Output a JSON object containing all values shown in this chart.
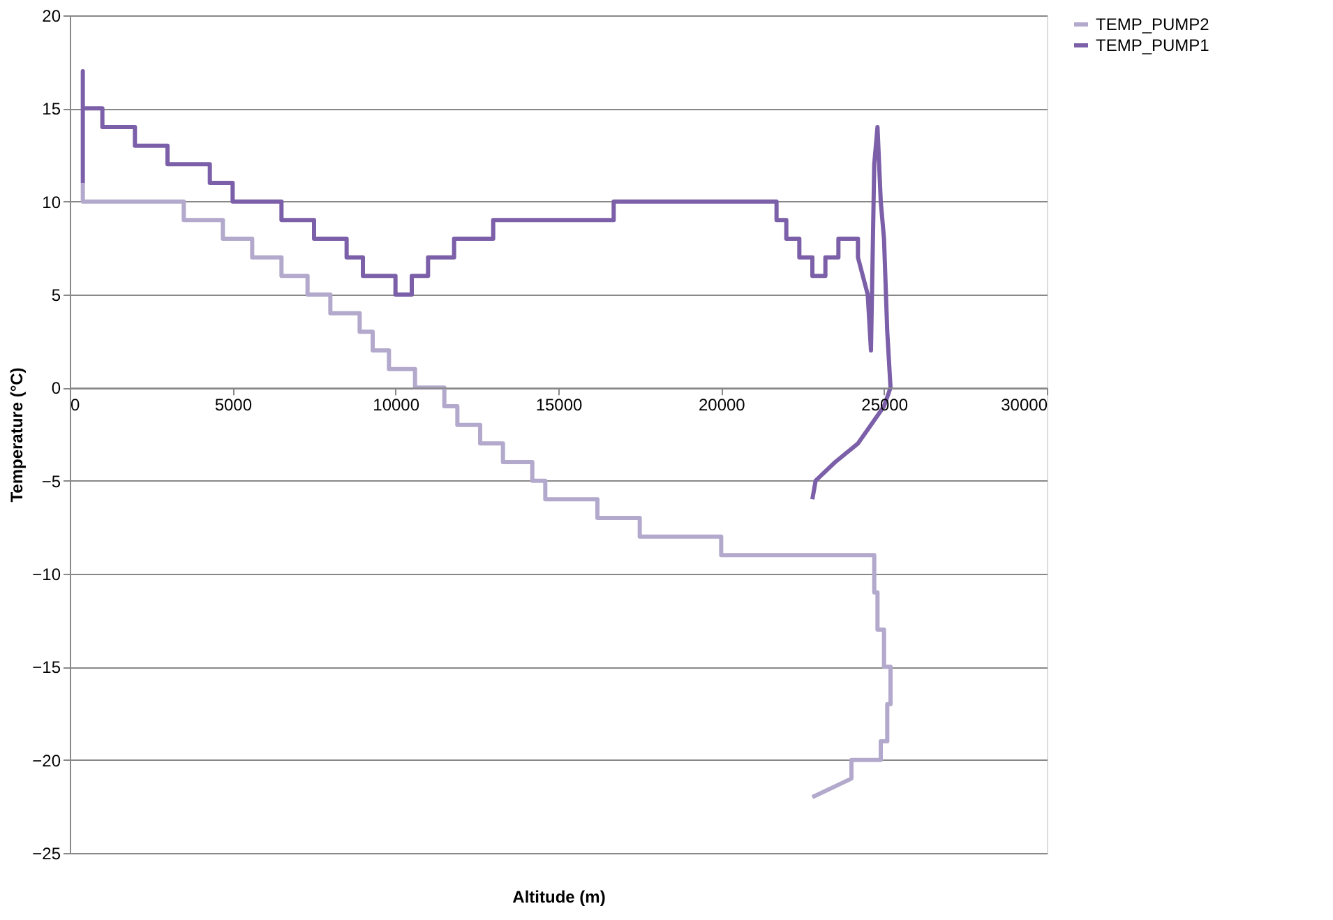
{
  "chart_data": {
    "type": "line",
    "xlabel": "Altitude (m)",
    "ylabel": "Temperature (°C)",
    "xlim": [
      0,
      30000
    ],
    "xticks": [
      0,
      5000,
      10000,
      15000,
      20000,
      25000,
      30000
    ],
    "ylim": [
      -25,
      20
    ],
    "yticks": [
      -25,
      -20,
      -15,
      -10,
      -5,
      0,
      5,
      10,
      15,
      20
    ],
    "grid": "y",
    "legend": "right",
    "line_style": "solid",
    "marker": "none",
    "series": [
      {
        "name": "TEMP_PUMP2",
        "color": "#b3a9cc",
        "x": [
          400,
          400,
          3500,
          3500,
          4700,
          4700,
          5600,
          5600,
          6500,
          6500,
          7300,
          7300,
          8000,
          8000,
          8900,
          8900,
          9300,
          9300,
          9800,
          9800,
          10600,
          10600,
          11500,
          11500,
          11900,
          11900,
          12600,
          12600,
          13300,
          13300,
          14200,
          14200,
          14600,
          14600,
          16200,
          16200,
          17500,
          17500,
          20000,
          20000,
          23200,
          23200,
          24700,
          24700,
          24800,
          24800,
          25000,
          25000,
          25200,
          25200,
          25100,
          25100,
          24900,
          24900,
          24000,
          24000,
          22800
        ],
        "values": [
          11,
          10,
          10,
          9,
          9,
          8,
          8,
          7,
          7,
          6,
          6,
          5,
          5,
          4,
          4,
          3,
          3,
          2,
          2,
          1,
          1,
          0,
          0,
          -1,
          -1,
          -2,
          -2,
          -3,
          -3,
          -4,
          -4,
          -5,
          -5,
          -6,
          -6,
          -7,
          -7,
          -8,
          -8,
          -9,
          -9,
          -9,
          -9,
          -11,
          -11,
          -13,
          -13,
          -15,
          -15,
          -17,
          -17,
          -19,
          -19,
          -20,
          -20,
          -21,
          -22
        ]
      },
      {
        "name": "TEMP_PUMP1",
        "color": "#7b5fa8",
        "x": [
          400,
          400,
          400,
          1000,
          1000,
          2000,
          2000,
          3000,
          3000,
          4300,
          4300,
          5000,
          5000,
          6500,
          6500,
          7500,
          7500,
          8500,
          8500,
          9000,
          9000,
          10000,
          10000,
          10500,
          10500,
          11000,
          11000,
          11800,
          11800,
          13000,
          13000,
          16700,
          16700,
          21700,
          21700,
          22000,
          22000,
          22400,
          22400,
          22800,
          22800,
          23200,
          23200,
          23600,
          23600,
          24200,
          24200,
          24500,
          24600,
          24700,
          24800,
          24900,
          25000,
          25100,
          25200,
          25000,
          24600,
          24200,
          23500,
          22900,
          22800
        ],
        "values": [
          11,
          17,
          15,
          15,
          14,
          14,
          13,
          13,
          12,
          12,
          11,
          11,
          10,
          10,
          9,
          9,
          8,
          8,
          7,
          7,
          6,
          6,
          5,
          5,
          6,
          6,
          7,
          7,
          8,
          8,
          9,
          9,
          10,
          10,
          9,
          9,
          8,
          8,
          7,
          7,
          6,
          6,
          7,
          7,
          8,
          8,
          7,
          5,
          2,
          12,
          14,
          10,
          8,
          3,
          0,
          -1,
          -2,
          -3,
          -4,
          -5,
          -6
        ]
      }
    ]
  }
}
